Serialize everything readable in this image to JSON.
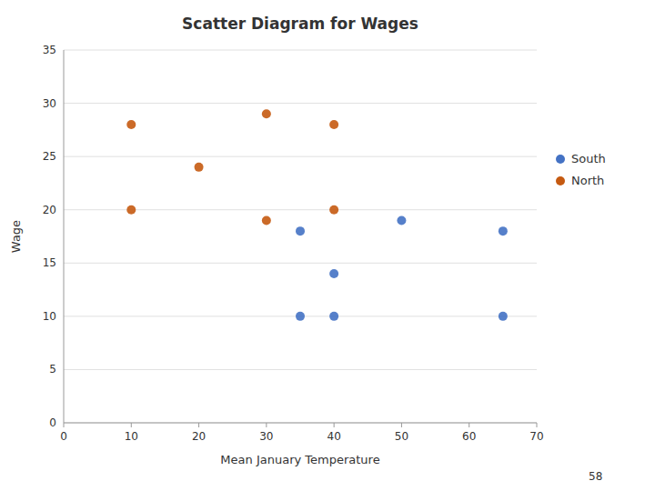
{
  "chart_data": {
    "type": "scatter",
    "title": "Scatter Diagram for Wages",
    "xlabel": "Mean January Temperature",
    "ylabel": "Wage",
    "annotations": [
      "58"
    ],
    "series": [
      {
        "name": "South",
        "color": "#4472c4",
        "x": [
          35,
          35,
          40,
          40,
          50,
          65,
          65
        ],
        "values": [
          18,
          10,
          14,
          10,
          19,
          18,
          10
        ]
      },
      {
        "name": "North",
        "color": "#c55a11",
        "x": [
          10,
          10,
          20,
          30,
          30,
          40,
          40
        ],
        "values": [
          28,
          20,
          24,
          29,
          19,
          28,
          20
        ]
      }
    ],
    "xlim": [
      0,
      70
    ],
    "ylim": [
      0,
      35
    ],
    "xticks": [
      0,
      10,
      20,
      30,
      40,
      50,
      60,
      70
    ],
    "yticks": [
      0,
      5,
      10,
      15,
      20,
      25,
      30,
      35
    ],
    "grid": true,
    "legend": "right"
  }
}
